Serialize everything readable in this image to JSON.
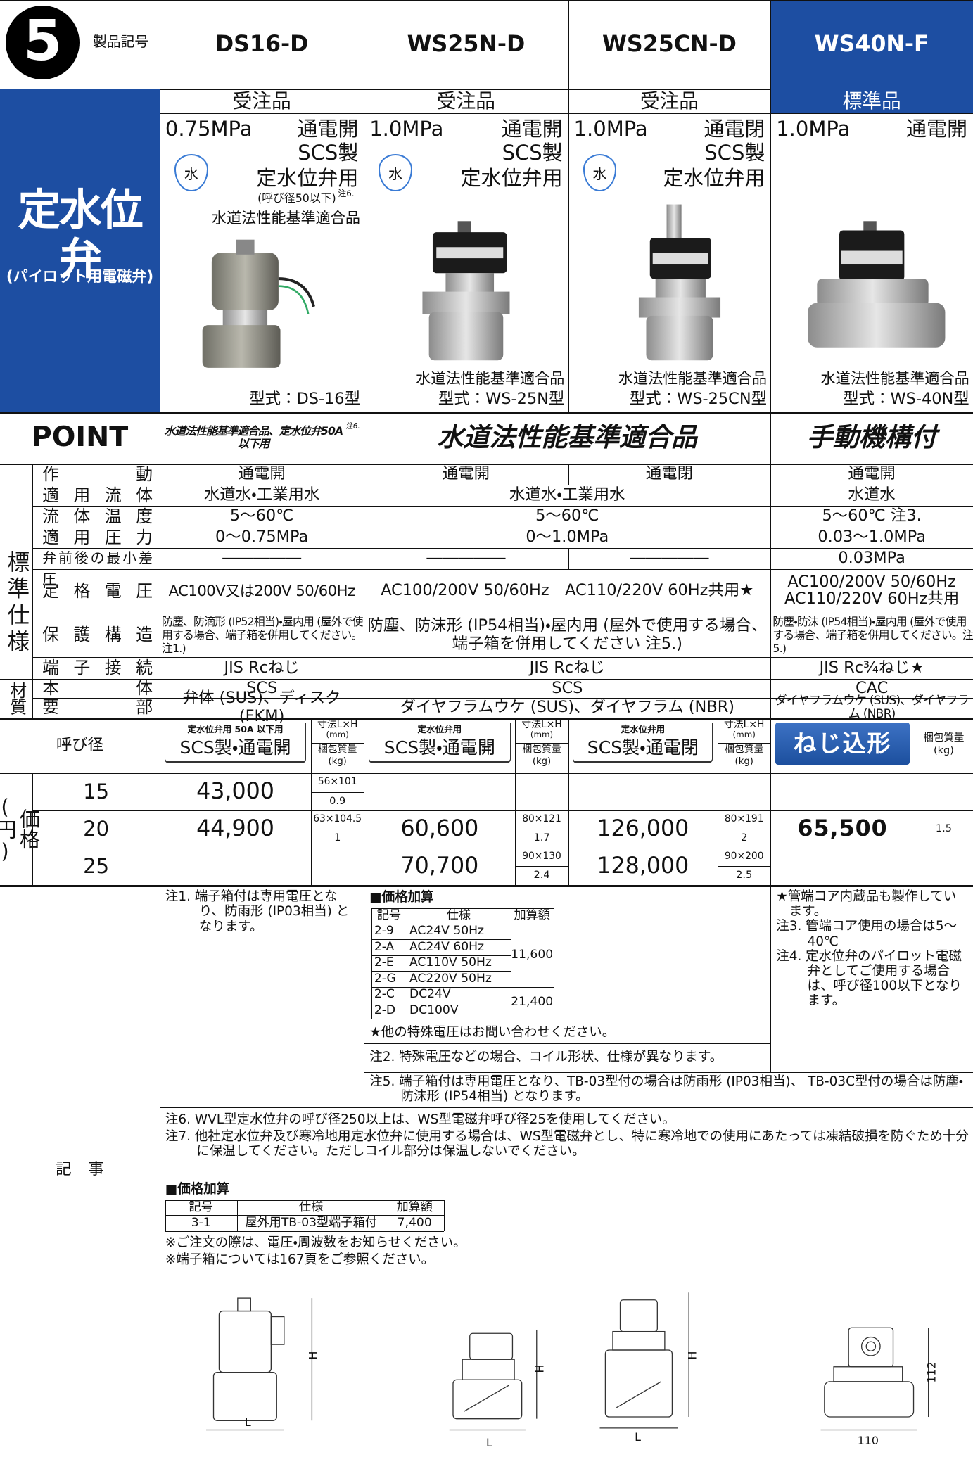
{
  "header": {
    "number": "5",
    "code_label": "製品記号"
  },
  "category": {
    "title": "定水位弁",
    "subtitle": "(パイロット用電磁弁)"
  },
  "products": [
    {
      "model": "DS16-D",
      "availability": "受注品",
      "pressure": "0.75MPa",
      "action": "通電開",
      "material": "SCS製",
      "use": "定水位弁用",
      "icon": "水",
      "size_note": "(呼び径50以下)",
      "size_note_ref": "注6.",
      "compliance": "水道法性能基準適合品",
      "type": "型式：DS-16型",
      "price_header": {
        "tab_title": "定水位弁用 50A 以下用",
        "tab_label": "SCS製・通電開",
        "dims_label": "寸法L×H",
        "dims_unit": "(mm)",
        "weight_label": "梱包質量",
        "weight_unit": "(kg)"
      },
      "prices": [
        {
          "size": "15",
          "price": "43,000",
          "dims": "56×101",
          "weight": "0.9"
        },
        {
          "size": "20",
          "price": "44,900",
          "dims": "63×104.5",
          "weight": "1"
        }
      ]
    },
    {
      "model": "WS25N-D",
      "availability": "受注品",
      "pressure": "1.0MPa",
      "action": "通電開",
      "material": "SCS製",
      "use": "定水位弁用",
      "icon": "水",
      "compliance": "水道法性能基準適合品",
      "type": "型式：WS-25N型",
      "price_header": {
        "tab_title": "定水位弁用",
        "tab_label": "SCS製・通電開",
        "dims_label": "寸法L×H",
        "dims_unit": "(mm)",
        "weight_label": "梱包質量",
        "weight_unit": "(kg)"
      },
      "prices": [
        {
          "size": "20",
          "price": "60,600",
          "dims": "80×121",
          "weight": "1.7"
        },
        {
          "size": "25",
          "price": "70,700",
          "dims": "90×130",
          "weight": "2.4"
        }
      ]
    },
    {
      "model": "WS25CN-D",
      "availability": "受注品",
      "pressure": "1.0MPa",
      "action": "通電閉",
      "material": "SCS製",
      "use": "定水位弁用",
      "icon": "水",
      "compliance": "水道法性能基準適合品",
      "type": "型式：WS-25CN型",
      "price_header": {
        "tab_title": "定水位弁用",
        "tab_label": "SCS製・通電閉",
        "dims_label": "寸法L×H",
        "dims_unit": "(mm)",
        "weight_label": "梱包質量",
        "weight_unit": "(kg)"
      },
      "prices": [
        {
          "size": "20",
          "price": "126,000",
          "dims": "80×191",
          "weight": "2"
        },
        {
          "size": "25",
          "price": "128,000",
          "dims": "90×200",
          "weight": "2.5"
        }
      ]
    },
    {
      "model": "WS40N-F",
      "availability": "標準品",
      "pressure": "1.0MPa",
      "action": "通電開",
      "compliance": "水道法性能基準適合品",
      "type": "型式：WS-40N型",
      "price_header": {
        "tab_label": "ねじ込形",
        "weight_label": "梱包質量",
        "weight_unit": "(kg)"
      },
      "prices": [
        {
          "size": "20",
          "price": "65,500",
          "weight": "1.5"
        }
      ]
    }
  ],
  "point": {
    "label": "POINT",
    "items": [
      {
        "text": "水道法性能基準適合品、定水位弁50A以下用",
        "ref": "注6."
      },
      {
        "text": "水道法性能基準適合品"
      },
      {
        "text": "手動機構付"
      }
    ]
  },
  "specs": {
    "group_labels": [
      "標準仕様",
      "材質"
    ],
    "rows": [
      {
        "label": "作動",
        "cells": [
          "通電開",
          "通電開",
          "通電閉",
          "通電開"
        ]
      },
      {
        "label": "適用流体",
        "cells": [
          "水道水・工業用水",
          "水道水・工業用水",
          "水道水"
        ]
      },
      {
        "label": "流体温度",
        "cells": [
          "5〜60℃",
          "5〜60℃",
          "5〜60℃ 注3."
        ]
      },
      {
        "label": "適用圧力",
        "cells": [
          "0〜0.75MPa",
          "0〜1.0MPa",
          "0.03〜1.0MPa"
        ]
      },
      {
        "label": "弁前後の最小差圧",
        "cells": [
          "―――――",
          "―――――",
          "―――――",
          "0.03MPa"
        ]
      },
      {
        "label": "定格電圧",
        "cells": [
          "AC100V又は200V 50/60Hz",
          "AC100/200V 50/60Hz　AC110/220V 60Hz共用★",
          "AC100/200V 50/60Hz\nAC110/220V 60Hz共用"
        ]
      },
      {
        "label": "保護構造",
        "cells": [
          "防塵、防滴形 (IP52相当)・屋内用 (屋外で使用する場合、端子箱を併用してください。注1.)",
          "防塵、防沫形 (IP54相当)・屋内用 (屋外で使用する場合、\n端子箱を併用してください 注5.)",
          "防塵・防沫 (IP54相当)・屋内用 (屋外で使用する場合、端子箱を併用してください。注5.)"
        ]
      },
      {
        "label": "端子接続",
        "cells": [
          "JIS Rcねじ",
          "JIS Rcねじ",
          "JIS Rc¾ねじ★"
        ]
      },
      {
        "label": "本体",
        "cells": [
          "SCS",
          "SCS",
          "CAC"
        ]
      },
      {
        "label": "要部",
        "cells": [
          "弁体 (SUS)、ディスク (FKM)",
          "ダイヤフラムウケ (SUS)、ダイヤフラム (NBR)",
          "ダイヤフラムウケ (SUS)、ダイヤフラム (NBR)"
        ]
      }
    ]
  },
  "price_table": {
    "size_label": "呼び径",
    "side_label": "価格(円)",
    "sizes": [
      "15",
      "20",
      "25"
    ]
  },
  "notes": {
    "label": "記事",
    "note1": "注1. 端子箱付は専用電圧となり、防雨形 (IP03相当) となります。",
    "surcharge": {
      "title": "■価格加算",
      "headers": [
        "記号",
        "仕様",
        "加算額"
      ],
      "rows": [
        [
          "2-9",
          "AC24V 50Hz"
        ],
        [
          "2-A",
          "AC24V 60Hz"
        ],
        [
          "2-E",
          "AC110V 50Hz"
        ],
        [
          "2-G",
          "AC220V 50Hz"
        ],
        [
          "2-C",
          "DC24V"
        ],
        [
          "2-D",
          "DC100V"
        ]
      ],
      "amounts": [
        "11,600",
        "21,400"
      ]
    },
    "voltage_note": "★他の特殊電圧はお問い合わせください。",
    "note2": "注2. 特殊電圧などの場合、コイル形状、仕様が異なります。",
    "side_notes": [
      "★管端コア内蔵品も製作しています。",
      "注3. 管端コア使用の場合は5〜40℃",
      "注4. 定水位弁のパイロット電磁弁としてご使用する場合は、呼び径100以下となります。"
    ],
    "note5": "注5. 端子箱付は専用電圧となり、TB-03型付の場合は防雨形 (IP03相当)、 TB-03C型付の場合は防塵・防沫形 (IP54相当) となります。",
    "general": [
      "注6. WVL型定水位弁の呼び径250以上は、WS型電磁弁呼び径25を使用してください。",
      "注7. 他社定水位弁及び寒冷地用定水位弁に使用する場合は、WS型電磁弁とし、特に寒冷地での使用にあたっては凍結破損を防ぐため十分に保温してください。ただしコイル部分は保温しないでください。"
    ],
    "surcharge2": {
      "title": "■価格加算",
      "headers": [
        "記号",
        "仕様",
        "加算額"
      ],
      "rows": [
        [
          "3-1",
          "屋外用TB-03型端子箱付",
          "7,400"
        ]
      ]
    },
    "remarks": [
      "※ご注文の際は、電圧・周波数をお知らせください。",
      "※端子箱については167頁をご参照ください。"
    ]
  },
  "drawings": [
    {
      "width": "L",
      "height": "H"
    },
    {
      "width": "L",
      "height": "H"
    },
    {
      "width": "L",
      "height": "H"
    },
    {
      "width": "110",
      "height": "112"
    }
  ]
}
